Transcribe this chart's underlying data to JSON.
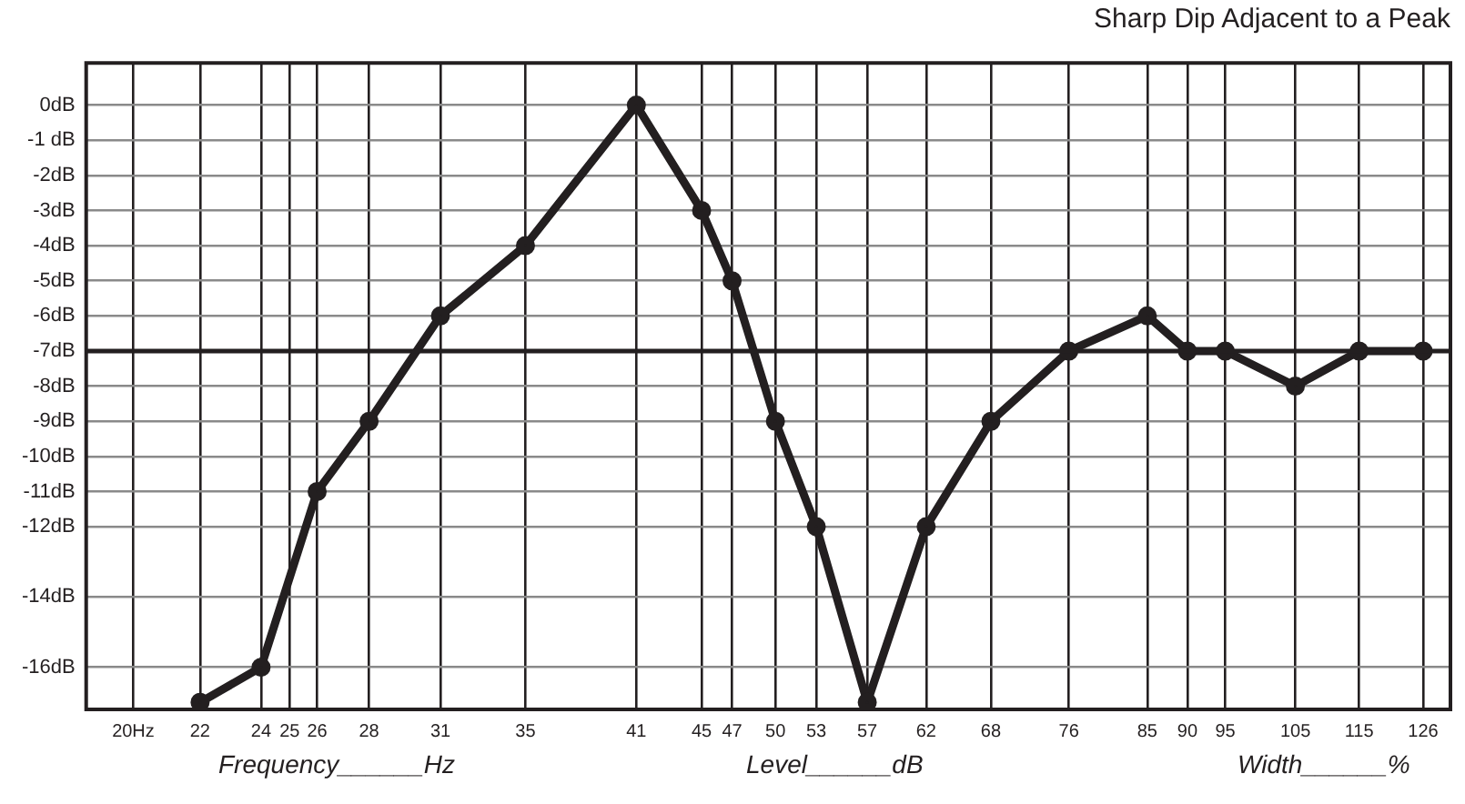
{
  "chart_data": {
    "type": "line",
    "title": "Sharp Dip Adjacent to a Peak",
    "x": [
      22,
      24,
      26,
      28,
      31,
      35,
      41,
      45,
      47,
      50,
      53,
      57,
      62,
      68,
      76,
      85,
      90,
      95,
      105,
      115,
      126
    ],
    "series": [
      {
        "color": "#231f20",
        "values": [
          -17,
          -16,
          -11,
          -9,
          -6,
          -4,
          0,
          -3,
          -5,
          -9,
          -12,
          -17,
          -12,
          -9,
          -7,
          -6,
          -7,
          -7,
          -8,
          -7,
          -7
        ]
      }
    ],
    "log": "x",
    "xlim": [
      18.7,
      131
    ],
    "xticks": [
      {
        "value": 20,
        "label": "20Hz"
      },
      22,
      24,
      25,
      26,
      28,
      31,
      35,
      41,
      45,
      47,
      50,
      53,
      57,
      62,
      68,
      76,
      85,
      90,
      95,
      105,
      115,
      126
    ],
    "ylim": [
      -17.2,
      1.2
    ],
    "yticks": [
      {
        "value": 0,
        "label": "0dB"
      },
      {
        "value": -1,
        "label": "-1 dB"
      },
      {
        "value": -2,
        "label": "-2dB"
      },
      {
        "value": -3,
        "label": "-3dB"
      },
      {
        "value": -4,
        "label": "-4dB"
      },
      {
        "value": -5,
        "label": "-5dB"
      },
      {
        "value": -6,
        "label": "-6dB"
      },
      {
        "value": -7,
        "label": "-7dB"
      },
      {
        "value": -8,
        "label": "-8dB"
      },
      {
        "value": -9,
        "label": "-9dB"
      },
      {
        "value": -10,
        "label": "-10dB"
      },
      {
        "value": -11,
        "label": "-11dB"
      },
      {
        "value": -12,
        "label": "-12dB"
      },
      {
        "value": -14,
        "label": "-14dB"
      },
      {
        "value": -16,
        "label": "-16dB"
      }
    ],
    "ref_lines": [
      {
        "axis": "y",
        "value": -7,
        "color": "#231f20"
      }
    ],
    "grid": true,
    "legend": false,
    "marker": "circle",
    "line_style": "solid",
    "annotations": [
      "Frequency______Hz",
      "Level______dB",
      "Width______%"
    ]
  }
}
